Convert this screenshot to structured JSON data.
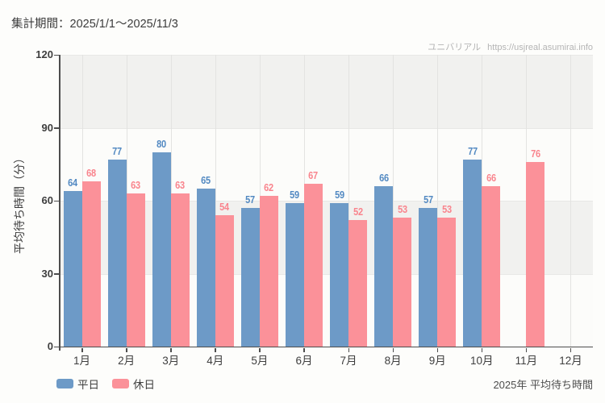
{
  "header": {
    "title": "集計期間：2025/1/1～2025/11/3"
  },
  "watermark": {
    "site_name": "ユニバリアル",
    "url": "https://usjreal.asumirai.info"
  },
  "footer": {
    "caption": "2025年 平均待ち時間"
  },
  "chart_data": {
    "type": "bar",
    "title": "",
    "xlabel": "",
    "ylabel": "平均待ち時間（分）",
    "categories": [
      "1月",
      "2月",
      "3月",
      "4月",
      "5月",
      "6月",
      "7月",
      "8月",
      "9月",
      "10月",
      "11月",
      "12月"
    ],
    "series": [
      {
        "name": "平日",
        "color": "#6d9ac7",
        "label_color": "#5289c2",
        "values": [
          64,
          77,
          80,
          65,
          57,
          59,
          59,
          66,
          57,
          77,
          null,
          null
        ]
      },
      {
        "name": "休日",
        "color": "#fb9199",
        "label_color": "#f9848d",
        "values": [
          68,
          63,
          63,
          54,
          62,
          67,
          52,
          53,
          53,
          66,
          76,
          null
        ]
      }
    ],
    "ylim": [
      0,
      120
    ],
    "yticks": [
      0,
      30,
      60,
      90,
      120
    ],
    "value_labels": true,
    "legend_position": "bottom-left",
    "grid": {
      "horizontal_bands": true,
      "band_color": "#f1f1ef",
      "vertical_lines_at": "category-centers"
    }
  }
}
